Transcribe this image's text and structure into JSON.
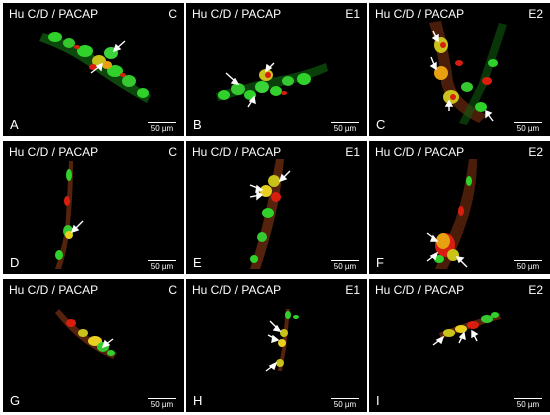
{
  "panels": [
    {
      "letter": "A",
      "title": "Hu C/D / PACAP",
      "group": "C",
      "scalebar": "50 µm"
    },
    {
      "letter": "B",
      "title": "Hu C/D / PACAP",
      "group": "E1",
      "scalebar": "50 µm"
    },
    {
      "letter": "C",
      "title": "Hu C/D / PACAP",
      "group": "E2",
      "scalebar": "50 µm"
    },
    {
      "letter": "D",
      "title": "Hu C/D / PACAP",
      "group": "C",
      "scalebar": "50 µm"
    },
    {
      "letter": "E",
      "title": "Hu C/D / PACAP",
      "group": "E1",
      "scalebar": "50 µm"
    },
    {
      "letter": "F",
      "title": "Hu C/D / PACAP",
      "group": "E2",
      "scalebar": "50 µm"
    },
    {
      "letter": "G",
      "title": "Hu C/D / PACAP",
      "group": "C",
      "scalebar": "50 µm"
    },
    {
      "letter": "H",
      "title": "Hu C/D / PACAP",
      "group": "E1",
      "scalebar": "50 µm"
    },
    {
      "letter": "I",
      "title": "Hu C/D / PACAP",
      "group": "E2",
      "scalebar": "50 µm"
    }
  ],
  "colors": {
    "background": "#000000",
    "huc_stain": "#2fd12a",
    "pacap_stain": "#d81e0e",
    "colocalized": "#f0c020",
    "annotation": "#ffffff"
  }
}
